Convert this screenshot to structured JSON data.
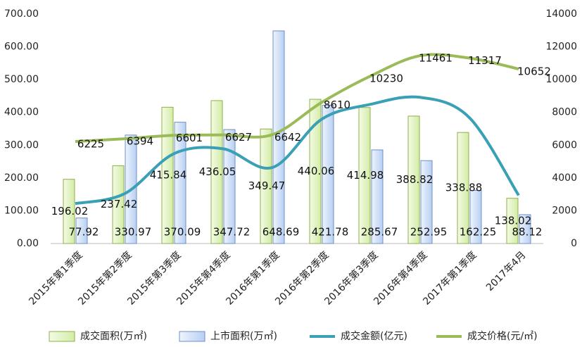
{
  "chart_data": {
    "type": "bar-line",
    "categories": [
      "2015年第1季度",
      "2015年第2季度",
      "2015年第3季度",
      "2015年第4季度",
      "2016年第1季度",
      "2016年第2季度",
      "2016年第3季度",
      "2016年第4季度",
      "2017年第1季度",
      "2017年4月"
    ],
    "ylim": [
      0,
      700
    ],
    "yticks": [
      {
        "value": 0,
        "label": "0.00"
      },
      {
        "value": 100,
        "label": "100.00"
      },
      {
        "value": 200,
        "label": "200.00"
      },
      {
        "value": 300,
        "label": "300.00"
      },
      {
        "value": 400,
        "label": "400.00"
      },
      {
        "value": 500,
        "label": "500.00"
      },
      {
        "value": 600,
        "label": "600.00"
      },
      {
        "value": 700,
        "label": "700.00"
      }
    ],
    "y2lim": [
      0,
      14000
    ],
    "y2ticks": [
      0,
      2000,
      4000,
      6000,
      8000,
      10000,
      12000,
      14000
    ],
    "series": [
      {
        "name": "成交面积(万㎡)",
        "kind": "bar",
        "color": "#8db04a",
        "values": [
          196.02,
          237.42,
          415.84,
          436.05,
          349.47,
          440.06,
          414.98,
          388.82,
          338.88,
          138.02
        ]
      },
      {
        "name": "上市面积(万㎡)",
        "kind": "bar",
        "color": "#6f8fc8",
        "values": [
          77.92,
          330.97,
          370.09,
          347.72,
          648.69,
          421.78,
          285.67,
          252.95,
          162.25,
          88.12
        ]
      },
      {
        "name": "成交金额(亿元)",
        "kind": "line",
        "color": "#3aa0b5",
        "values": [
          122,
          152,
          274,
          289,
          232,
          379,
          425,
          446,
          384,
          147
        ]
      },
      {
        "name": "成交价格(元/㎡)",
        "kind": "line",
        "axis": "y2",
        "color": "#9bbb59",
        "values": [
          6225,
          6394,
          6601,
          6627,
          6642,
          8610,
          10230,
          11461,
          11317,
          10652
        ]
      }
    ]
  }
}
